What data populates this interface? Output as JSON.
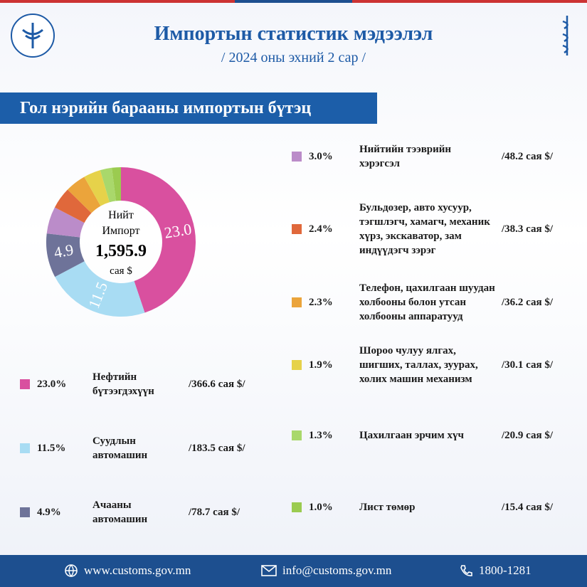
{
  "header": {
    "title": "Импортын статистик мэдээлэл",
    "subtitle": "/ 2024 оны эхний 2 сар /"
  },
  "section_title": "Гол нэрийн барааны импортын бүтэц",
  "chart_data": {
    "type": "donut",
    "center": {
      "line1": "Нийт",
      "line2": "Импорт",
      "total": "1,595.9",
      "unit": "сая $"
    },
    "categories": [
      "Нефтийн бүтээгдэхүүн",
      "Суудлын автомашин",
      "Ачааны автомашин",
      "Нийтийн тээврийн хэрэгсэл",
      "Бульдозер, авто хусуур, тэгшлэгч, хамагч, механик хүрз, экскаватор, зам индүүдэгч зэрэг",
      "Телефон, цахилгаан шуудан холбооны болон утсан холбооны аппаратууд",
      "Шороо чулуу ялгах, шигших, таллах, зуурах, холих машин механизм",
      "Цахилгаан эрчим хүч",
      "Лист төмөр"
    ],
    "values": [
      23.0,
      11.5,
      4.9,
      3.0,
      2.4,
      2.3,
      1.9,
      1.3,
      1.0
    ],
    "value_labels": [
      "23.0%",
      "11.5%",
      "4.9%",
      "3.0%",
      "2.4%",
      "2.3%",
      "1.9%",
      "1.3%",
      "1.0%"
    ],
    "slice_labels": [
      "23.0",
      "11.5",
      "4.9",
      null,
      null,
      null,
      null,
      null,
      null
    ],
    "amount_labels": [
      "/366.6 сая $/",
      "/183.5 сая $/",
      "/78.7 сая $/",
      "/48.2  сая $/",
      "/38.3 сая $/",
      "/36.2 сая $/",
      "/30.1 сая $/",
      "/20.9 сая $/",
      "/15.4 сая $/"
    ],
    "colors": [
      "#d9509f",
      "#a8dcf3",
      "#6e7399",
      "#bb8cc9",
      "#e0683b",
      "#eba43b",
      "#e6d24a",
      "#a9d86b",
      "#9bcb50"
    ]
  },
  "footer": {
    "web": "www.customs.gov.mn",
    "email": "info@customs.gov.mn",
    "phone": "1800-1281"
  }
}
